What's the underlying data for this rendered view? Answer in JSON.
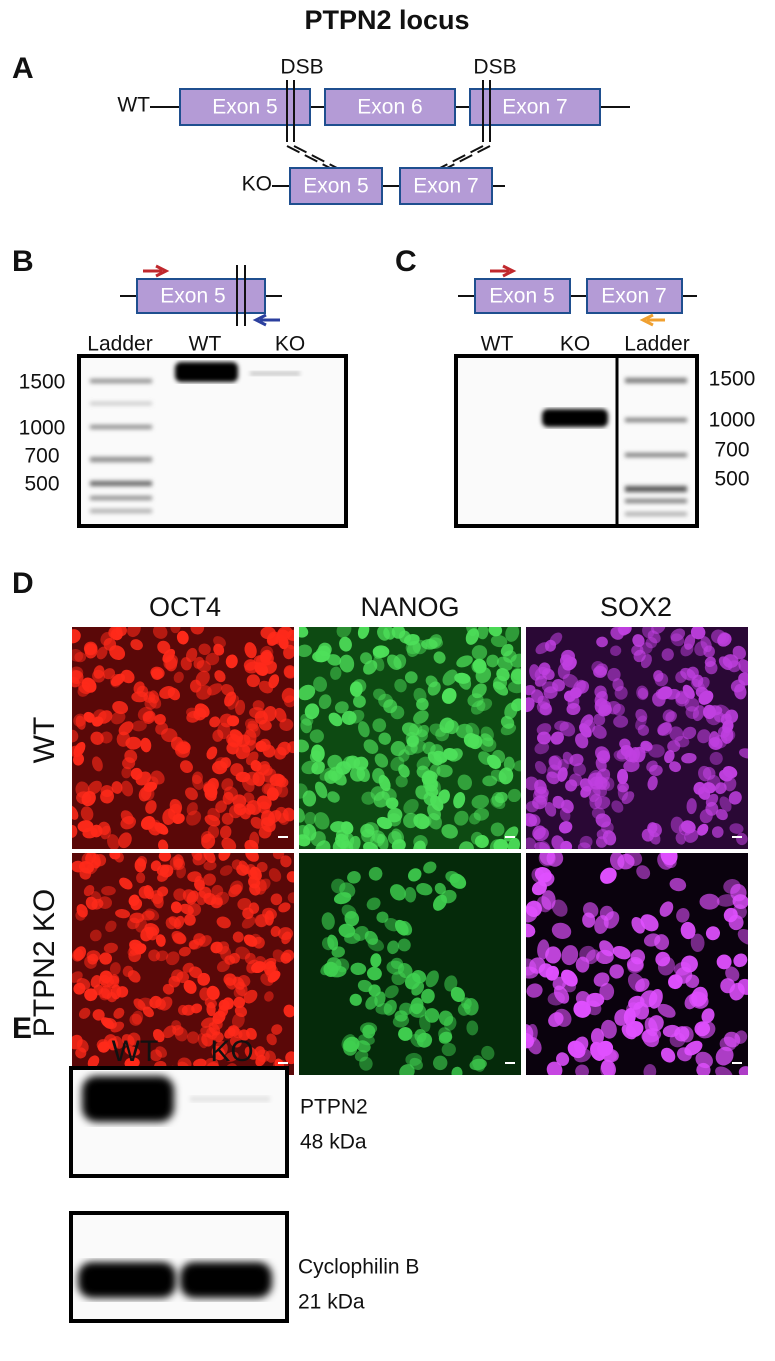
{
  "title": "PTPN2 locus",
  "panels": {
    "a": {
      "label": "A",
      "dsb": [
        "DSB",
        "DSB"
      ],
      "wt": {
        "label": "WT",
        "exons": [
          "Exon 5",
          "Exon 6",
          "Exon 7"
        ]
      },
      "ko": {
        "label": "KO",
        "exons": [
          "Exon 5",
          "Exon 7"
        ]
      }
    },
    "b": {
      "label": "B",
      "exon": "Exon 5",
      "lanes": [
        "Ladder",
        "WT",
        "KO"
      ],
      "sizes": [
        1500,
        1000,
        700,
        500
      ]
    },
    "c": {
      "label": "C",
      "exons": [
        "Exon 5",
        "Exon 7"
      ],
      "lanes": [
        "WT",
        "KO",
        "Ladder"
      ],
      "sizes": [
        1500,
        1000,
        700,
        500
      ]
    },
    "d": {
      "label": "D",
      "columns": [
        "OCT4",
        "NANOG",
        "SOX2"
      ],
      "rows": [
        "WT",
        "PTPN2 KO"
      ]
    },
    "e": {
      "label": "E",
      "lanes": [
        "WT",
        "KO"
      ],
      "blots": [
        {
          "protein": "PTPN2",
          "size": "48 kDa"
        },
        {
          "protein": "Cyclophilin B",
          "size": "21 kDa"
        }
      ]
    }
  }
}
